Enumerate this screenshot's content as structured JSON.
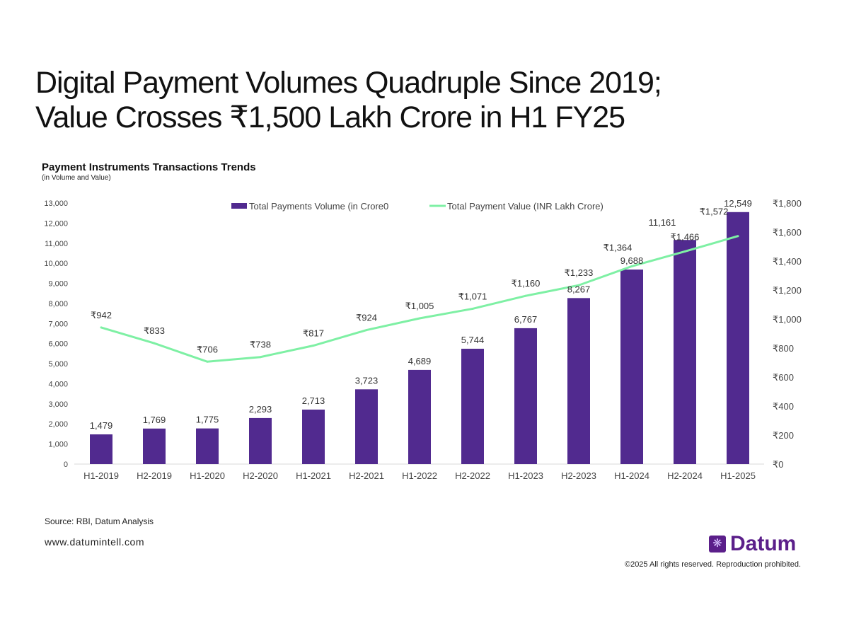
{
  "title_line1": "Digital Payment Volumes Quadruple Since 2019;",
  "title_line2": "Value Crosses ₹1,500 Lakh Crore in H1 FY25",
  "chart_data": {
    "type": "bar+line",
    "title": "Payment Instruments Transactions Trends",
    "subtitle": "(in Volume and Value)",
    "categories": [
      "H1-2019",
      "H2-2019",
      "H1-2020",
      "H2-2020",
      "H1-2021",
      "H2-2021",
      "H1-2022",
      "H2-2022",
      "H1-2023",
      "H2-2023",
      "H1-2024",
      "H2-2024",
      "H1-2025"
    ],
    "series": [
      {
        "name": "Total Payments Volume (in Crore0",
        "type": "bar",
        "axis": "left",
        "color": "#512a8f",
        "values": [
          1479,
          1769,
          1775,
          2293,
          2713,
          3723,
          4689,
          5744,
          6767,
          8267,
          9688,
          11161,
          12549
        ],
        "labels": [
          "1,479",
          "1,769",
          "1,775",
          "2,293",
          "2,713",
          "3,723",
          "4,689",
          "5,744",
          "6,767",
          "8,267",
          "9,688",
          "11,161",
          "12,549"
        ]
      },
      {
        "name": "Total Payment Value (INR Lakh Crore)",
        "type": "line",
        "axis": "right",
        "color": "#7ef0a4",
        "values": [
          942,
          833,
          706,
          738,
          817,
          924,
          1005,
          1071,
          1160,
          1233,
          1364,
          1466,
          1572
        ],
        "labels": [
          "₹942",
          "₹833",
          "₹706",
          "₹738",
          "₹817",
          "₹924",
          "₹1,005",
          "₹1,071",
          "₹1,160",
          "₹1,233",
          "₹1,364",
          "₹1,466",
          "₹1,572"
        ]
      }
    ],
    "yleft": {
      "range": [
        0,
        13000
      ],
      "ticks": [
        "0",
        "1,000",
        "2,000",
        "3,000",
        "4,000",
        "5,000",
        "6,000",
        "7,000",
        "8,000",
        "9,000",
        "10,000",
        "11,000",
        "12,000",
        "13,000"
      ]
    },
    "yright": {
      "range": [
        0,
        1800
      ],
      "ticks": [
        "₹0",
        "₹200",
        "₹400",
        "₹600",
        "₹800",
        "₹1,000",
        "₹1,200",
        "₹1,400",
        "₹1,600",
        "₹1,800"
      ]
    },
    "grid": false,
    "legend": "top"
  },
  "source": "Source: RBI, Datum Analysis",
  "website": "www.datumintell.com",
  "brand": "Datum",
  "copyright": "©2025 All rights reserved. Reproduction prohibited."
}
